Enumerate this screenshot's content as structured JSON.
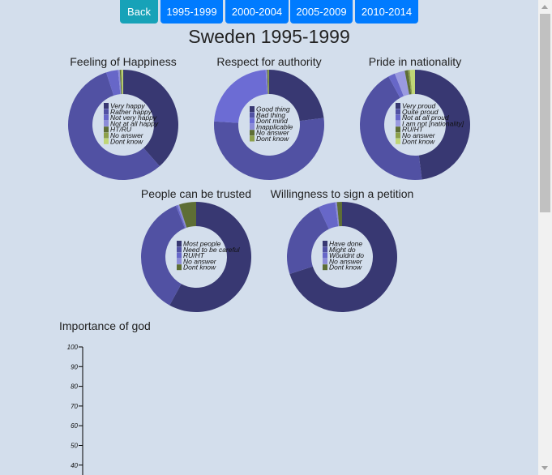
{
  "nav": {
    "back_label": "Back",
    "periods": [
      "1995-1999",
      "2000-2004",
      "2005-2009",
      "2010-2014"
    ]
  },
  "colors": {
    "back_button": "#17a2b8",
    "period_button": "#007bff",
    "background": "#d3deec"
  },
  "page_title": "Sweden 1995-1999",
  "chart_data": [
    {
      "type": "pie",
      "title": "Feeling of Happiness",
      "labels": [
        "Very happy",
        "Rather happy",
        "Not very happy",
        "Not at all happy",
        "HT/RU",
        "No answer",
        "Dont know"
      ],
      "values": [
        38.5,
        56.5,
        3.5,
        0.5,
        0.3,
        0.3,
        0.4
      ],
      "colors": [
        "#383872",
        "#5151a3",
        "#6767c8",
        "#8c8cd8",
        "#5e6e35",
        "#8da04b",
        "#c0d676"
      ]
    },
    {
      "type": "pie",
      "title": "Respect for authority",
      "labels": [
        "Good thing",
        "Bad thing",
        "Dont mind",
        "Inapplicable",
        "No answer",
        "Dont know"
      ],
      "values": [
        23,
        53,
        23,
        0.4,
        0.3,
        0.3
      ],
      "colors": [
        "#383872",
        "#5151a3",
        "#6c6cd4",
        "#8c8cd8",
        "#5e6e35",
        "#8da04b"
      ]
    },
    {
      "type": "pie",
      "title": "Pride in nationality",
      "labels": [
        "Very proud",
        "Quite proud",
        "Not at all proud",
        "I am not [nationality]",
        "RU/HT",
        "No answer",
        "Dont know"
      ],
      "values": [
        48,
        44,
        2,
        3,
        1,
        0.5,
        1.5
      ],
      "colors": [
        "#383872",
        "#5151a3",
        "#6767c8",
        "#9a9ae0",
        "#5e6e35",
        "#8da04b",
        "#c0d676"
      ]
    },
    {
      "type": "pie",
      "title": "People can be trusted",
      "labels": [
        "Most people",
        "Need to be careful",
        "RU/HT",
        "No answer",
        "Dont know"
      ],
      "values": [
        58,
        36,
        0.5,
        0.5,
        5
      ],
      "colors": [
        "#383872",
        "#5151a3",
        "#6767c8",
        "#8c8cd8",
        "#5e6e35"
      ]
    },
    {
      "type": "pie",
      "title": "Willingness to sign a petition",
      "labels": [
        "Have done",
        "Might do",
        "Wouldnt do",
        "No answer",
        "Dont know"
      ],
      "values": [
        70,
        23,
        5,
        0.5,
        1.5
      ],
      "colors": [
        "#383872",
        "#5151a3",
        "#6767c8",
        "#8c8cd8",
        "#5e6e35"
      ]
    },
    {
      "type": "bar",
      "title": "Importance of god",
      "ylim": [
        0,
        100
      ],
      "yticks": [
        100,
        90,
        80,
        70,
        60,
        50,
        40
      ],
      "categories": [],
      "values": []
    }
  ]
}
